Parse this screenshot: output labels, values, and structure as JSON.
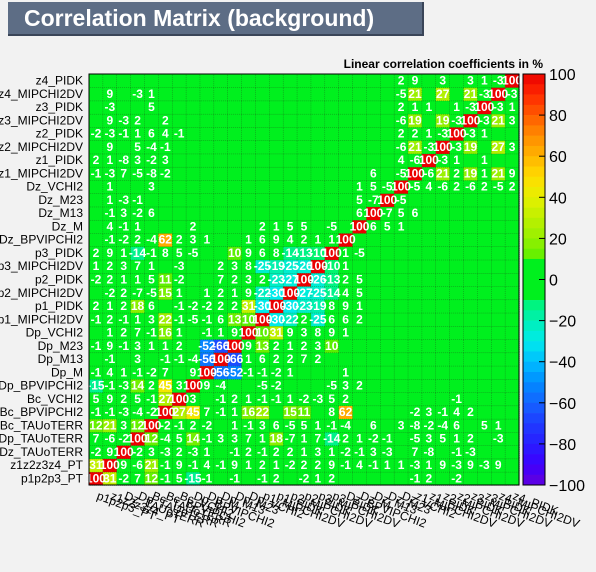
{
  "chart_data": {
    "type": "heatmap",
    "title": "Correlation Matrix (background)",
    "subtitle": "Linear correlation coefficients in %",
    "labels_bottom_to_top": [
      "p1p2p3_PT",
      "z1z2z3z4_PT",
      "Dz_TAUoTERR",
      "Dp_TAUoTERR",
      "Bc_TAUoTERR",
      "Bc_BPVIPCHI2",
      "Bc_VCHI2",
      "Dp_BPVIPCHI2",
      "Dp_M",
      "Dp_M13",
      "Dp_M23",
      "Dp_VCHI2",
      "p1_MIPCHI2DV",
      "p1_PIDK",
      "p2_MIPCHI2DV",
      "p2_PIDK",
      "p3_MIPCHI2DV",
      "p3_PIDK",
      "Dz_BPVIPCHI2",
      "Dz_M",
      "Dz_M13",
      "Dz_M23",
      "Dz_VCHI2",
      "z1_MIPCHI2DV",
      "z1_PIDK",
      "z2_MIPCHI2DV",
      "z2_PIDK",
      "z3_MIPCHI2DV",
      "z3_PIDK",
      "z4_MIPCHI2DV",
      "z4_PIDK"
    ],
    "y_tick_labels": [
      "p1p2p3_PT",
      "z1z2z3z4_PT",
      "Dz_TAUoTERR",
      "Dp_TAUoTERR",
      "Bc_TAUoTERR",
      "Bc_BPVIPCHI2",
      "Bc_VCHI2",
      "Dp_BPVIPCHI2",
      "Dp_M",
      "Dp_M13",
      "Dp_M23",
      "Dp_VCHI2",
      "p1_MIPCHI2DV",
      "p1_PIDK",
      "p2_MIPCHI2DV",
      "p2_PIDK",
      "p3_MIPCHI2DV",
      "p3_PIDK",
      "Dz_BPVIPCHI2",
      "Dz_M",
      "Dz_M13",
      "Dz_M23",
      "Dz_VCHI2",
      "z1_MIPCHI2DV",
      "z1_PIDK",
      "z2_MIPCHI2DV",
      "z2_PIDK",
      "z3_MIPCHI2DV",
      "z3_PIDK",
      "z4_MIPCHI2DV",
      "z4_PIDK"
    ],
    "x_tick_labels": [
      "p1p2p3_PT",
      "z1z2z3z4_PT",
      "Dz_TAUoTERR",
      "Dp_TAUoTERR",
      "Bc_TAUoTERR",
      "Bc_BPVIPCHI2",
      "Bc_VCHI2",
      "Dp_BPVIPCHI2",
      "Dp_M",
      "Dp_M13",
      "Dp_M23",
      "Dp_VCHI2",
      "p1_MIPCHI2DV",
      "p1_PIDK",
      "p2_MIPCHI2DV",
      "p2_PIDK",
      "p3_MIPCHI2DV",
      "p3_PIDK",
      "Dz_BPVIPCHI2",
      "Dz_M",
      "Dz_M13",
      "Dz_M23",
      "Dz_VCHI2",
      "z1_MIPCHI2DV",
      "z1_PIDK",
      "z2_MIPCHI2DV",
      "z2_PIDK",
      "z3_MIPCHI2DV",
      "z3_PIDK",
      "z4_MIPCHI2DV",
      "z4_PIDK"
    ],
    "matrix_rows_bottom_to_top": [
      [
        100,
        31,
        -2,
        7,
        12,
        -1,
        5,
        -15,
        -1,
        0,
        -1,
        0,
        -1,
        2,
        0,
        -2,
        1,
        2,
        0,
        0,
        0,
        0,
        0,
        -1,
        2,
        0,
        -2,
        0,
        0,
        0,
        0
      ],
      [
        31,
        100,
        9,
        -6,
        21,
        -1,
        9,
        -1,
        4,
        -1,
        9,
        1,
        2,
        1,
        -2,
        2,
        2,
        9,
        -1,
        4,
        -1,
        1,
        1,
        -3,
        1,
        9,
        -3,
        9,
        -3,
        9,
        0
      ],
      [
        -2,
        9,
        100,
        -2,
        3,
        -3,
        2,
        -3,
        1,
        0,
        -1,
        2,
        -1,
        2,
        2,
        1,
        3,
        1,
        -2,
        -1,
        3,
        -3,
        0,
        7,
        -8,
        0,
        -1,
        -3,
        0,
        0,
        0
      ],
      [
        7,
        -6,
        -2,
        100,
        12,
        -4,
        5,
        14,
        -1,
        3,
        3,
        7,
        1,
        18,
        -7,
        1,
        7,
        -14,
        2,
        1,
        -2,
        -1,
        0,
        -5,
        3,
        5,
        1,
        2,
        0,
        -3,
        0
      ],
      [
        12,
        21,
        3,
        12,
        100,
        -2,
        -1,
        2,
        -2,
        0,
        1,
        -1,
        3,
        6,
        -5,
        5,
        1,
        -1,
        -4,
        0,
        6,
        0,
        3,
        -8,
        -2,
        -4,
        6,
        0,
        5,
        1,
        0
      ],
      [
        -1,
        -1,
        -3,
        -4,
        -2,
        100,
        27,
        45,
        7,
        -1,
        1,
        16,
        22,
        0,
        15,
        11,
        0,
        8,
        62,
        0,
        0,
        0,
        0,
        -2,
        3,
        -1,
        4,
        2,
        0,
        0,
        0
      ],
      [
        5,
        9,
        2,
        5,
        -1,
        27,
        100,
        3,
        0,
        -1,
        2,
        1,
        -1,
        -1,
        1,
        -2,
        -3,
        5,
        2,
        0,
        0,
        0,
        0,
        0,
        0,
        0,
        -1,
        0,
        0,
        0,
        0
      ],
      [
        -15,
        -1,
        -3,
        14,
        2,
        45,
        3,
        100,
        9,
        -4,
        0,
        0,
        -5,
        -2,
        0,
        0,
        0,
        -5,
        3,
        2,
        0,
        0,
        0,
        0,
        0,
        0,
        0,
        0,
        0,
        0,
        0
      ],
      [
        -1,
        4,
        1,
        -1,
        -2,
        7,
        0,
        9,
        100,
        -56,
        -52,
        -1,
        -1,
        -2,
        1,
        0,
        0,
        0,
        1,
        0,
        0,
        0,
        0,
        0,
        0,
        0,
        0,
        0,
        0,
        0,
        0
      ],
      [
        0,
        -1,
        0,
        3,
        0,
        -1,
        -1,
        -4,
        -56,
        100,
        -66,
        1,
        6,
        2,
        2,
        7,
        2,
        0,
        0,
        0,
        0,
        0,
        0,
        0,
        0,
        0,
        0,
        0,
        0,
        0,
        0
      ],
      [
        -1,
        9,
        -1,
        3,
        1,
        1,
        2,
        0,
        -52,
        -66,
        100,
        9,
        13,
        2,
        1,
        2,
        3,
        10,
        0,
        0,
        0,
        0,
        0,
        0,
        0,
        0,
        0,
        0,
        0,
        0,
        0
      ],
      [
        0,
        1,
        2,
        7,
        -1,
        16,
        1,
        0,
        -1,
        1,
        9,
        100,
        10,
        31,
        9,
        3,
        8,
        9,
        1,
        0,
        0,
        0,
        0,
        0,
        0,
        0,
        0,
        0,
        0,
        0,
        0
      ],
      [
        -1,
        2,
        -1,
        1,
        3,
        22,
        -1,
        -5,
        -1,
        6,
        13,
        10,
        100,
        -30,
        -22,
        2,
        -25,
        6,
        6,
        2,
        0,
        0,
        0,
        0,
        0,
        0,
        0,
        0,
        0,
        0,
        0
      ],
      [
        2,
        1,
        2,
        18,
        6,
        0,
        -1,
        -2,
        -2,
        2,
        2,
        31,
        -30,
        100,
        -30,
        -23,
        -19,
        8,
        9,
        1,
        0,
        0,
        0,
        0,
        0,
        0,
        0,
        0,
        0,
        0,
        0
      ],
      [
        0,
        -2,
        2,
        -7,
        -5,
        15,
        1,
        0,
        1,
        2,
        1,
        9,
        -22,
        -30,
        100,
        -27,
        -25,
        -14,
        4,
        5,
        0,
        0,
        0,
        0,
        0,
        0,
        0,
        0,
        0,
        0,
        0
      ],
      [
        -2,
        2,
        1,
        1,
        5,
        11,
        -2,
        0,
        0,
        7,
        2,
        3,
        2,
        -23,
        -27,
        100,
        -26,
        -13,
        2,
        5,
        0,
        0,
        0,
        0,
        0,
        0,
        0,
        0,
        0,
        0,
        0
      ],
      [
        1,
        2,
        3,
        7,
        1,
        0,
        -3,
        0,
        0,
        2,
        3,
        8,
        -25,
        -19,
        -25,
        -26,
        100,
        -10,
        1,
        0,
        0,
        0,
        0,
        0,
        0,
        0,
        0,
        0,
        0,
        0,
        0
      ],
      [
        2,
        9,
        1,
        -14,
        -1,
        8,
        5,
        -5,
        0,
        0,
        10,
        9,
        6,
        8,
        -14,
        -13,
        -10,
        100,
        1,
        -5,
        0,
        0,
        0,
        0,
        0,
        0,
        0,
        0,
        0,
        0,
        0
      ],
      [
        0,
        -1,
        -2,
        2,
        -4,
        62,
        2,
        3,
        1,
        0,
        0,
        1,
        6,
        9,
        4,
        2,
        1,
        1,
        100,
        0,
        0,
        0,
        0,
        0,
        0,
        0,
        0,
        0,
        0,
        0,
        0
      ],
      [
        0,
        4,
        -1,
        1,
        0,
        0,
        0,
        2,
        0,
        0,
        0,
        0,
        2,
        1,
        5,
        5,
        0,
        -5,
        0,
        100,
        6,
        5,
        1,
        0,
        0,
        0,
        0,
        0,
        0,
        0,
        0
      ],
      [
        0,
        -1,
        3,
        -2,
        6,
        0,
        0,
        0,
        0,
        0,
        0,
        0,
        0,
        0,
        0,
        0,
        0,
        0,
        0,
        6,
        100,
        -7,
        5,
        6,
        0,
        0,
        0,
        0,
        0,
        0,
        0
      ],
      [
        0,
        1,
        -3,
        -1,
        0,
        0,
        0,
        0,
        0,
        0,
        0,
        0,
        0,
        0,
        0,
        0,
        0,
        0,
        0,
        5,
        -7,
        100,
        -5,
        0,
        0,
        0,
        0,
        0,
        0,
        0,
        0
      ],
      [
        0,
        1,
        0,
        0,
        3,
        0,
        0,
        0,
        0,
        0,
        0,
        0,
        0,
        0,
        0,
        0,
        0,
        0,
        0,
        1,
        5,
        -5,
        100,
        -5,
        4,
        -6,
        2,
        -6,
        2,
        -5,
        2
      ],
      [
        -1,
        -3,
        7,
        -5,
        -8,
        -2,
        0,
        0,
        0,
        0,
        0,
        0,
        0,
        0,
        0,
        0,
        0,
        0,
        0,
        0,
        6,
        0,
        -5,
        100,
        -6,
        21,
        2,
        19,
        1,
        21,
        9
      ],
      [
        2,
        1,
        -8,
        3,
        -2,
        3,
        0,
        0,
        0,
        0,
        0,
        0,
        0,
        0,
        0,
        0,
        0,
        0,
        0,
        0,
        0,
        0,
        4,
        -6,
        100,
        -3,
        1,
        0,
        1,
        0,
        0
      ],
      [
        0,
        9,
        0,
        5,
        -4,
        -1,
        0,
        0,
        0,
        0,
        0,
        0,
        0,
        0,
        0,
        0,
        0,
        0,
        0,
        0,
        0,
        0,
        -6,
        21,
        -3,
        100,
        -3,
        19,
        0,
        27,
        3
      ],
      [
        -2,
        -3,
        -1,
        1,
        6,
        4,
        -1,
        0,
        0,
        0,
        0,
        0,
        0,
        0,
        0,
        0,
        0,
        0,
        0,
        0,
        0,
        0,
        2,
        2,
        1,
        -3,
        100,
        -3,
        1,
        0,
        0
      ],
      [
        0,
        9,
        -3,
        2,
        0,
        2,
        0,
        0,
        0,
        0,
        0,
        0,
        0,
        0,
        0,
        0,
        0,
        0,
        0,
        0,
        0,
        0,
        -6,
        19,
        0,
        19,
        -3,
        100,
        -3,
        21,
        3
      ],
      [
        0,
        -3,
        0,
        0,
        5,
        0,
        0,
        0,
        0,
        0,
        0,
        0,
        0,
        0,
        0,
        0,
        0,
        0,
        0,
        0,
        0,
        0,
        2,
        1,
        1,
        0,
        1,
        -3,
        100,
        -3,
        1
      ],
      [
        0,
        9,
        0,
        -3,
        1,
        0,
        0,
        0,
        0,
        0,
        0,
        0,
        0,
        0,
        0,
        0,
        0,
        0,
        0,
        0,
        0,
        0,
        -5,
        21,
        0,
        27,
        0,
        21,
        -3,
        100,
        -3
      ],
      [
        0,
        0,
        0,
        0,
        0,
        0,
        0,
        0,
        0,
        0,
        0,
        0,
        0,
        0,
        0,
        0,
        0,
        0,
        0,
        0,
        0,
        0,
        2,
        9,
        0,
        3,
        0,
        3,
        1,
        -3,
        100
      ]
    ],
    "z_range": [
      -100,
      100
    ],
    "z_ticks": [
      "100",
      "80",
      "60",
      "40",
      "20",
      "0",
      "−20",
      "−40",
      "−60",
      "−80",
      "−100"
    ],
    "grid": true,
    "legend": "color scale right"
  }
}
